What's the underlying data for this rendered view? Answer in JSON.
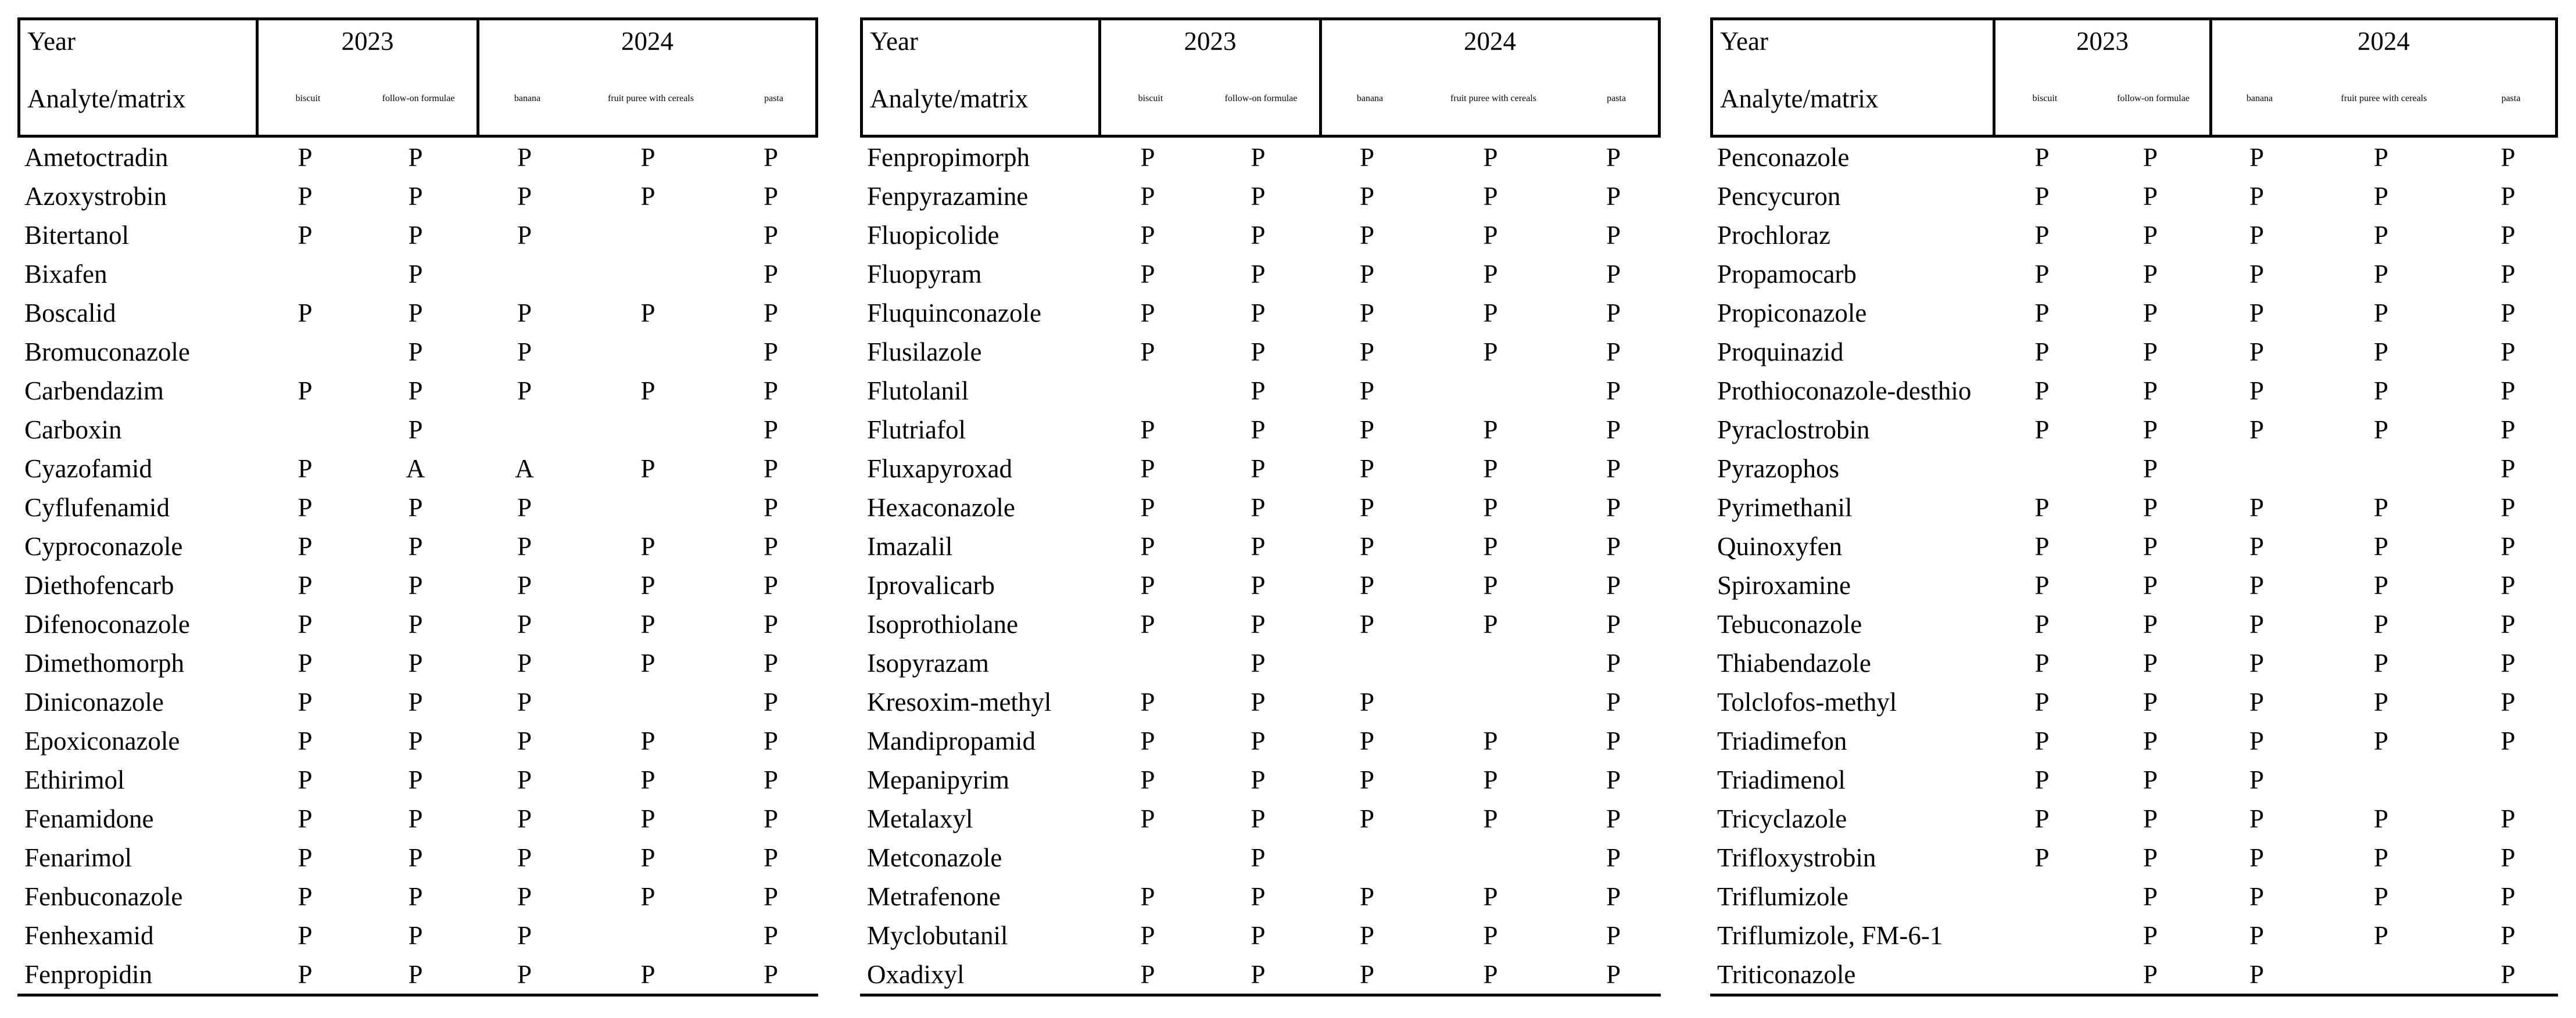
{
  "header": {
    "year_label": "Year",
    "analyte_label": "Analyte/matrix",
    "group_2023": "2023",
    "group_2024": "2024",
    "sub_2023": [
      "biscuit",
      "follow-on formulae"
    ],
    "sub_2024": [
      "banana",
      "fruit puree with cereals",
      "pasta"
    ]
  },
  "result_values": {
    "present": "P",
    "absent_mark": "A"
  },
  "colors": {
    "text": "#000000",
    "background": "#ffffff",
    "rule": "#000000"
  },
  "tables": [
    {
      "rows": [
        {
          "analyte": "Ametoctradin",
          "values": [
            "P",
            "P",
            "P",
            "P",
            "P"
          ]
        },
        {
          "analyte": "Azoxystrobin",
          "values": [
            "P",
            "P",
            "P",
            "P",
            "P"
          ]
        },
        {
          "analyte": "Bitertanol",
          "values": [
            "P",
            "P",
            "P",
            "",
            "P"
          ]
        },
        {
          "analyte": "Bixafen",
          "values": [
            "",
            "P",
            "",
            "",
            "P"
          ]
        },
        {
          "analyte": "Boscalid",
          "values": [
            "P",
            "P",
            "P",
            "P",
            "P"
          ]
        },
        {
          "analyte": "Bromuconazole",
          "values": [
            "",
            "P",
            "P",
            "",
            "P"
          ]
        },
        {
          "analyte": "Carbendazim",
          "values": [
            "P",
            "P",
            "P",
            "P",
            "P"
          ]
        },
        {
          "analyte": "Carboxin",
          "values": [
            "",
            "P",
            "",
            "",
            "P"
          ]
        },
        {
          "analyte": "Cyazofamid",
          "values": [
            "P",
            "A",
            "A",
            "P",
            "P"
          ]
        },
        {
          "analyte": "Cyflufenamid",
          "values": [
            "P",
            "P",
            "P",
            "",
            "P"
          ]
        },
        {
          "analyte": "Cyproconazole",
          "values": [
            "P",
            "P",
            "P",
            "P",
            "P"
          ]
        },
        {
          "analyte": "Diethofencarb",
          "values": [
            "P",
            "P",
            "P",
            "P",
            "P"
          ]
        },
        {
          "analyte": "Difenoconazole",
          "values": [
            "P",
            "P",
            "P",
            "P",
            "P"
          ]
        },
        {
          "analyte": "Dimethomorph",
          "values": [
            "P",
            "P",
            "P",
            "P",
            "P"
          ]
        },
        {
          "analyte": "Diniconazole",
          "values": [
            "P",
            "P",
            "P",
            "",
            "P"
          ]
        },
        {
          "analyte": "Epoxiconazole",
          "values": [
            "P",
            "P",
            "P",
            "P",
            "P"
          ]
        },
        {
          "analyte": "Ethirimol",
          "values": [
            "P",
            "P",
            "P",
            "P",
            "P"
          ]
        },
        {
          "analyte": "Fenamidone",
          "values": [
            "P",
            "P",
            "P",
            "P",
            "P"
          ]
        },
        {
          "analyte": "Fenarimol",
          "values": [
            "P",
            "P",
            "P",
            "P",
            "P"
          ]
        },
        {
          "analyte": "Fenbuconazole",
          "values": [
            "P",
            "P",
            "P",
            "P",
            "P"
          ]
        },
        {
          "analyte": "Fenhexamid",
          "values": [
            "P",
            "P",
            "P",
            "",
            "P"
          ]
        },
        {
          "analyte": "Fenpropidin",
          "values": [
            "P",
            "P",
            "P",
            "P",
            "P"
          ]
        }
      ]
    },
    {
      "rows": [
        {
          "analyte": "Fenpropimorph",
          "values": [
            "P",
            "P",
            "P",
            "P",
            "P"
          ]
        },
        {
          "analyte": "Fenpyrazamine",
          "values": [
            "P",
            "P",
            "P",
            "P",
            "P"
          ]
        },
        {
          "analyte": "Fluopicolide",
          "values": [
            "P",
            "P",
            "P",
            "P",
            "P"
          ]
        },
        {
          "analyte": "Fluopyram",
          "values": [
            "P",
            "P",
            "P",
            "P",
            "P"
          ]
        },
        {
          "analyte": "Fluquinconazole",
          "values": [
            "P",
            "P",
            "P",
            "P",
            "P"
          ]
        },
        {
          "analyte": "Flusilazole",
          "values": [
            "P",
            "P",
            "P",
            "P",
            "P"
          ]
        },
        {
          "analyte": "Flutolanil",
          "values": [
            "",
            "P",
            "P",
            "",
            "P"
          ]
        },
        {
          "analyte": "Flutriafol",
          "values": [
            "P",
            "P",
            "P",
            "P",
            "P"
          ]
        },
        {
          "analyte": "Fluxapyroxad",
          "values": [
            "P",
            "P",
            "P",
            "P",
            "P"
          ]
        },
        {
          "analyte": "Hexaconazole",
          "values": [
            "P",
            "P",
            "P",
            "P",
            "P"
          ]
        },
        {
          "analyte": "Imazalil",
          "values": [
            "P",
            "P",
            "P",
            "P",
            "P"
          ]
        },
        {
          "analyte": "Iprovalicarb",
          "values": [
            "P",
            "P",
            "P",
            "P",
            "P"
          ]
        },
        {
          "analyte": "Isoprothiolane",
          "values": [
            "P",
            "P",
            "P",
            "P",
            "P"
          ]
        },
        {
          "analyte": "Isopyrazam",
          "values": [
            "",
            "P",
            "",
            "",
            "P"
          ]
        },
        {
          "analyte": "Kresoxim-methyl",
          "values": [
            "P",
            "P",
            "P",
            "",
            "P"
          ]
        },
        {
          "analyte": "Mandipropamid",
          "values": [
            "P",
            "P",
            "P",
            "P",
            "P"
          ]
        },
        {
          "analyte": "Mepanipyrim",
          "values": [
            "P",
            "P",
            "P",
            "P",
            "P"
          ]
        },
        {
          "analyte": "Metalaxyl",
          "values": [
            "P",
            "P",
            "P",
            "P",
            "P"
          ]
        },
        {
          "analyte": "Metconazole",
          "values": [
            "",
            "P",
            "",
            "",
            "P"
          ]
        },
        {
          "analyte": "Metrafenone",
          "values": [
            "P",
            "P",
            "P",
            "P",
            "P"
          ]
        },
        {
          "analyte": "Myclobutanil",
          "values": [
            "P",
            "P",
            "P",
            "P",
            "P"
          ]
        },
        {
          "analyte": "Oxadixyl",
          "values": [
            "P",
            "P",
            "P",
            "P",
            "P"
          ]
        }
      ]
    },
    {
      "rows": [
        {
          "analyte": "Penconazole",
          "values": [
            "P",
            "P",
            "P",
            "P",
            "P"
          ]
        },
        {
          "analyte": "Pencycuron",
          "values": [
            "P",
            "P",
            "P",
            "P",
            "P"
          ]
        },
        {
          "analyte": "Prochloraz",
          "values": [
            "P",
            "P",
            "P",
            "P",
            "P"
          ]
        },
        {
          "analyte": "Propamocarb",
          "values": [
            "P",
            "P",
            "P",
            "P",
            "P"
          ]
        },
        {
          "analyte": "Propiconazole",
          "values": [
            "P",
            "P",
            "P",
            "P",
            "P"
          ]
        },
        {
          "analyte": "Proquinazid",
          "values": [
            "P",
            "P",
            "P",
            "P",
            "P"
          ]
        },
        {
          "analyte": "Prothioconazole-desthio",
          "values": [
            "P",
            "P",
            "P",
            "P",
            "P"
          ]
        },
        {
          "analyte": "Pyraclostrobin",
          "values": [
            "P",
            "P",
            "P",
            "P",
            "P"
          ]
        },
        {
          "analyte": "Pyrazophos",
          "values": [
            "",
            "P",
            "",
            "",
            "P"
          ]
        },
        {
          "analyte": "Pyrimethanil",
          "values": [
            "P",
            "P",
            "P",
            "P",
            "P"
          ]
        },
        {
          "analyte": "Quinoxyfen",
          "values": [
            "P",
            "P",
            "P",
            "P",
            "P"
          ]
        },
        {
          "analyte": "Spiroxamine",
          "values": [
            "P",
            "P",
            "P",
            "P",
            "P"
          ]
        },
        {
          "analyte": "Tebuconazole",
          "values": [
            "P",
            "P",
            "P",
            "P",
            "P"
          ]
        },
        {
          "analyte": "Thiabendazole",
          "values": [
            "P",
            "P",
            "P",
            "P",
            "P"
          ]
        },
        {
          "analyte": "Tolclofos-methyl",
          "values": [
            "P",
            "P",
            "P",
            "P",
            "P"
          ]
        },
        {
          "analyte": "Triadimefon",
          "values": [
            "P",
            "P",
            "P",
            "P",
            "P"
          ]
        },
        {
          "analyte": "Triadimenol",
          "values": [
            "P",
            "P",
            "P",
            "",
            ""
          ]
        },
        {
          "analyte": "Tricyclazole",
          "values": [
            "P",
            "P",
            "P",
            "P",
            "P"
          ]
        },
        {
          "analyte": "Trifloxystrobin",
          "values": [
            "P",
            "P",
            "P",
            "P",
            "P"
          ]
        },
        {
          "analyte": "Triflumizole",
          "values": [
            "",
            "P",
            "P",
            "P",
            "P"
          ]
        },
        {
          "analyte": "Triflumizole, FM-6-1",
          "values": [
            "",
            "P",
            "P",
            "P",
            "P"
          ]
        },
        {
          "analyte": "Triticonazole",
          "values": [
            "",
            "P",
            "P",
            "",
            "P"
          ]
        }
      ]
    }
  ]
}
